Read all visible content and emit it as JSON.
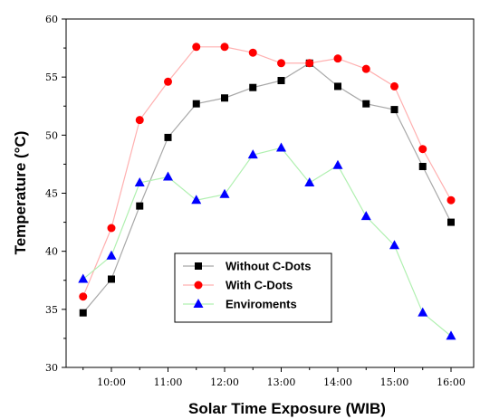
{
  "chart_data": {
    "type": "line",
    "xlabel": "Solar Time Exposure (WIB)",
    "ylabel": "Temperature (°C)",
    "x": [
      9.5,
      10,
      10.5,
      11,
      11.5,
      12,
      12.5,
      13,
      13.5,
      14,
      14.5,
      15,
      15.5,
      16
    ],
    "x_ticks": [
      "10:00",
      "11:00",
      "12:00",
      "13:00",
      "14:00",
      "15:00",
      "16:00"
    ],
    "x_tick_values": [
      10,
      11,
      12,
      13,
      14,
      15,
      16
    ],
    "xlim": [
      9.2,
      16.4
    ],
    "ylim": [
      30,
      60
    ],
    "y_ticks": [
      30,
      35,
      40,
      45,
      50,
      55,
      60
    ],
    "series": [
      {
        "name": "Without C-Dots",
        "marker": "square",
        "marker_color": "#000000",
        "line_color": "#a8a8a8",
        "values": [
          34.7,
          37.6,
          43.9,
          49.8,
          52.7,
          53.2,
          54.1,
          54.7,
          56.2,
          54.2,
          52.7,
          52.2,
          47.3,
          42.5
        ]
      },
      {
        "name": "With C-Dots",
        "marker": "circle",
        "marker_color": "#ff0000",
        "line_color": "#ffb0b0",
        "values": [
          36.1,
          42.0,
          51.3,
          54.6,
          57.6,
          57.6,
          57.1,
          56.2,
          56.2,
          56.6,
          55.7,
          54.2,
          48.8,
          44.4
        ]
      },
      {
        "name": "Enviroments",
        "marker": "triangle",
        "marker_color": "#0000ff",
        "line_color": "#b0f0b0",
        "values": [
          37.6,
          39.6,
          45.9,
          46.4,
          44.4,
          44.9,
          48.3,
          48.9,
          45.9,
          47.4,
          43.0,
          40.5,
          34.7,
          32.7
        ]
      }
    ],
    "legend": {
      "position": "inside-bottom-left"
    },
    "grid": false
  }
}
